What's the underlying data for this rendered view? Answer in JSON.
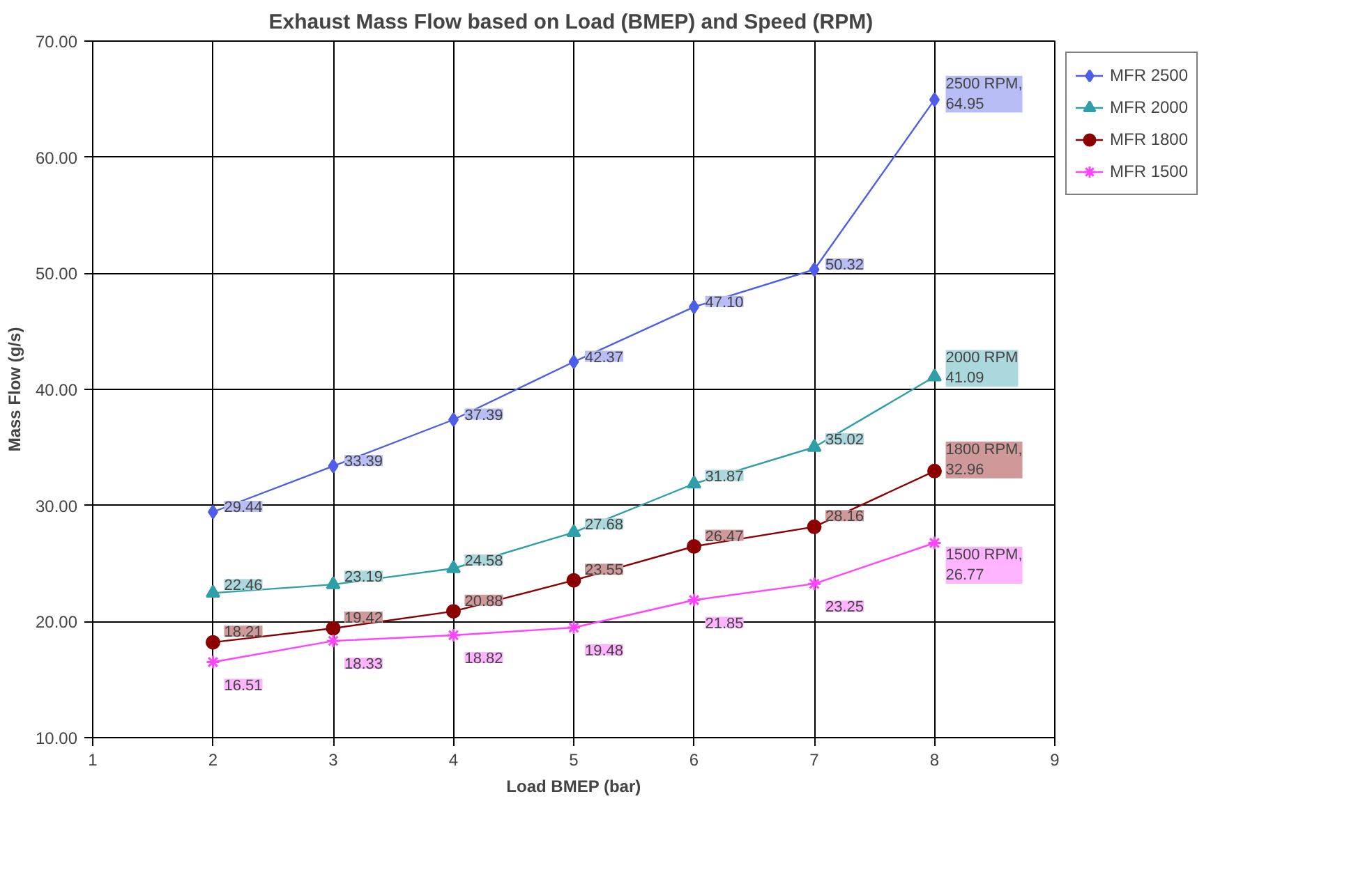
{
  "chart_data": {
    "type": "line",
    "title": "Exhaust  Mass Flow based on Load (BMEP) and Speed (RPM)",
    "xlabel": "Load BMEP (bar)",
    "ylabel": "Mass Flow (g/s)",
    "x": [
      2,
      3,
      4,
      5,
      6,
      7,
      8
    ],
    "series": [
      {
        "name": "MFR 2500",
        "color": "#4f5ee8",
        "marker": "diamond",
        "values": [
          29.44,
          33.39,
          37.39,
          42.37,
          47.1,
          50.32,
          64.95
        ],
        "value_labels": [
          "29.44",
          "33.39",
          "37.39",
          "42.37",
          "47.10",
          "50.32",
          "2500 RPM,\n64.95"
        ]
      },
      {
        "name": "MFR 2000",
        "color": "#2e9ea8",
        "marker": "triangle",
        "values": [
          22.46,
          23.19,
          24.58,
          27.68,
          31.87,
          35.02,
          41.09
        ],
        "value_labels": [
          "22.46",
          "23.19",
          "24.58",
          "27.68",
          "31.87",
          "35.02",
          "2000 RPM\n41.09"
        ]
      },
      {
        "name": "MFR 1800",
        "color": "#8b0000",
        "marker": "circle",
        "values": [
          18.21,
          19.42,
          20.88,
          23.55,
          26.47,
          28.16,
          32.96
        ],
        "value_labels": [
          "18.21",
          "19.42",
          "20.88",
          "23.55",
          "26.47",
          "28.16",
          "1800 RPM,\n32.96"
        ]
      },
      {
        "name": "MFR 1500",
        "color": "#ff44ff",
        "marker": "cross",
        "values": [
          16.51,
          18.33,
          18.82,
          19.48,
          21.85,
          23.25,
          26.77
        ],
        "value_labels": [
          "16.51",
          "18.33",
          "18.82",
          "19.48",
          "21.85",
          "23.25",
          "1500 RPM,\n26.77"
        ]
      }
    ],
    "xlim": [
      1,
      9
    ],
    "xticks": [
      1,
      2,
      3,
      4,
      5,
      6,
      7,
      8,
      9
    ],
    "ylim": [
      10,
      70
    ],
    "yticks": [
      {
        "value": 10,
        "label": "10.00"
      },
      {
        "value": 20,
        "label": "20.00"
      },
      {
        "value": 30,
        "label": "30.00"
      },
      {
        "value": 40,
        "label": "40.00"
      },
      {
        "value": 50,
        "label": "50.00"
      },
      {
        "value": 60,
        "label": "60.00"
      },
      {
        "value": 70,
        "label": "70.00"
      }
    ],
    "grid": true,
    "legend": "right",
    "line_style": "solid"
  }
}
